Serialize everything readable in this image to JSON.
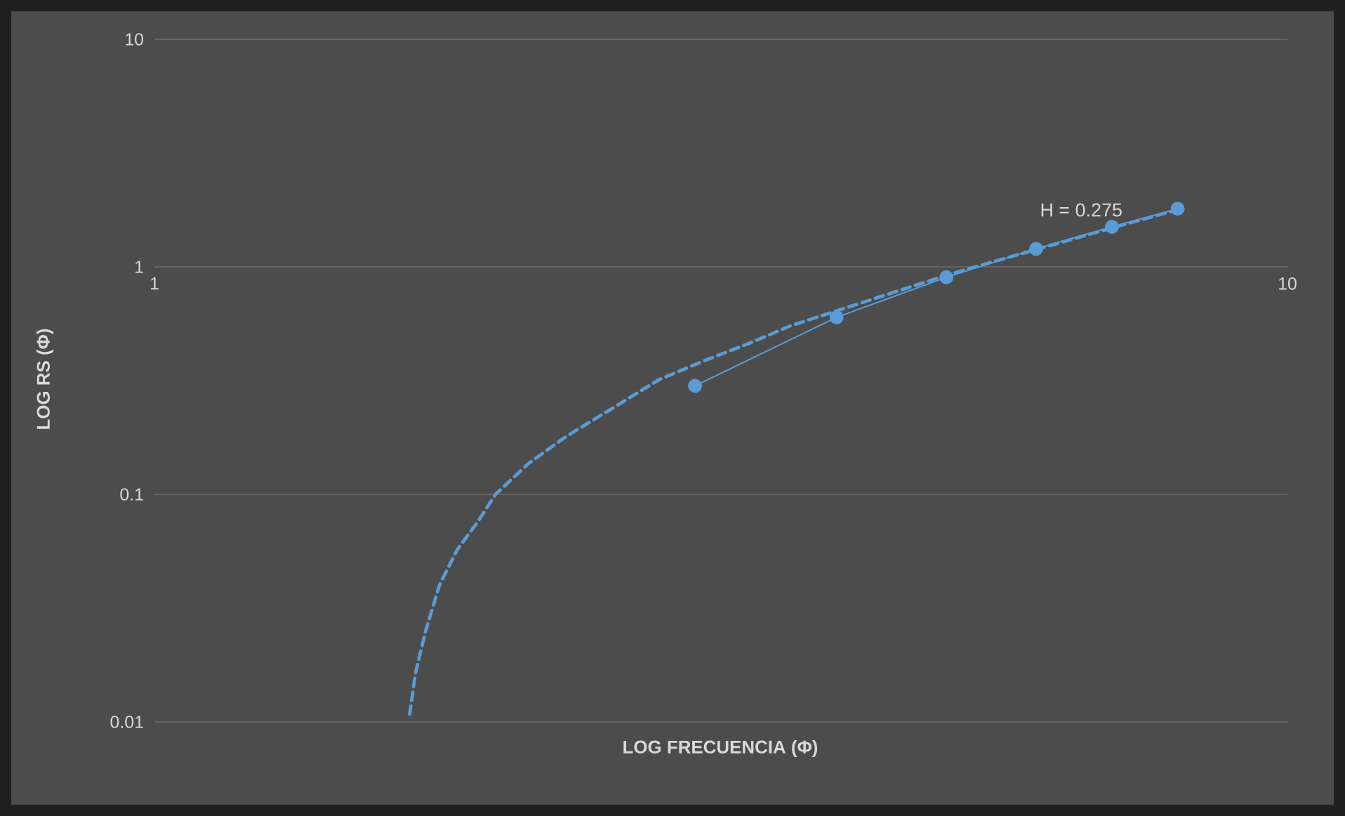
{
  "chart_data": {
    "type": "line",
    "xlabel": "LOG FRECUENCIA (Φ)",
    "ylabel": "LOG RS (Φ)",
    "log": "xy",
    "xlim": [
      1,
      10
    ],
    "xticks": [
      {
        "value": 1,
        "label": "1"
      },
      {
        "value": 10,
        "label": "10"
      }
    ],
    "ylim": [
      0.01,
      10
    ],
    "yticks": [
      {
        "value": 0.01,
        "label": "0.01"
      },
      {
        "value": 0.1,
        "label": "0.1"
      },
      {
        "value": 1,
        "label": "1"
      },
      {
        "value": 10,
        "label": "10"
      }
    ],
    "grid": "y",
    "series": [
      {
        "color": "#5b9bd5",
        "marker": "none",
        "line_style": "dashed",
        "x": [
          1.68,
          1.7,
          1.735,
          1.785,
          1.85,
          1.93,
          2.0,
          2.14,
          2.31,
          2.54,
          2.79,
          3.07,
          3.38,
          3.64,
          5.04,
          7.02,
          7.96
        ],
        "values": [
          0.0108,
          0.0164,
          0.025,
          0.04,
          0.057,
          0.076,
          0.1,
          0.137,
          0.18,
          0.24,
          0.32,
          0.39,
          0.47,
          0.55,
          0.93,
          1.49,
          1.77
        ]
      },
      {
        "color": "#5b9bd5",
        "marker": "circle",
        "line_style": "solid",
        "x": [
          3,
          4,
          5,
          6,
          7,
          8
        ],
        "values": [
          0.3,
          0.6,
          0.9,
          1.2,
          1.5,
          1.8
        ]
      }
    ],
    "annotations": [
      "H = 0.275"
    ]
  }
}
